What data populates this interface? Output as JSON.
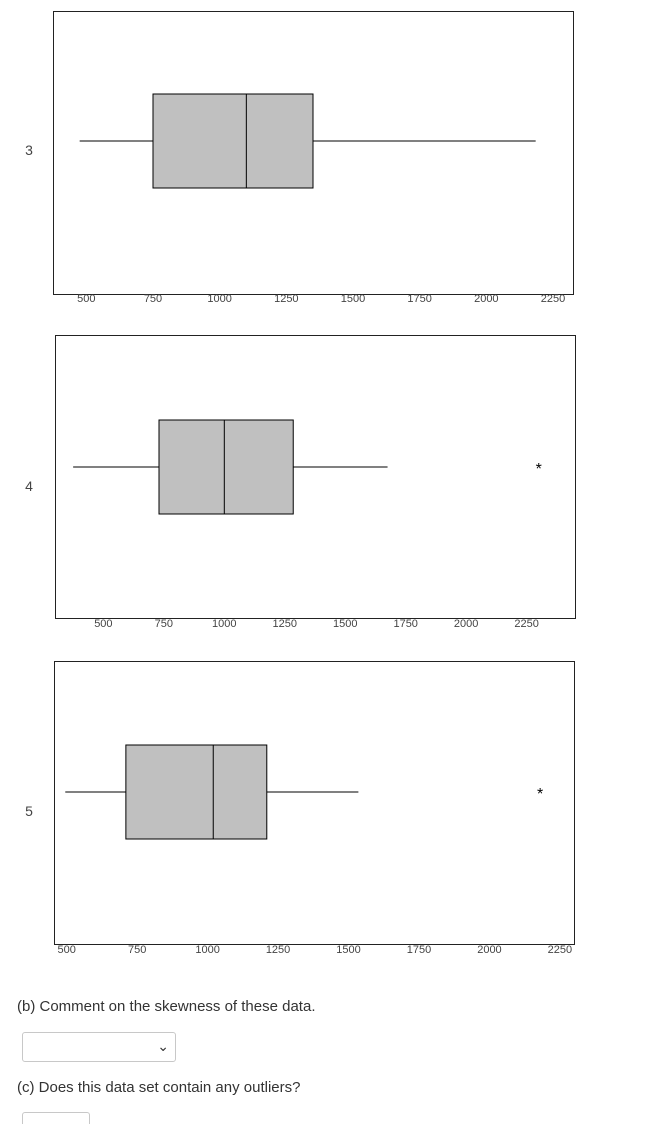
{
  "chart_data": [
    {
      "type": "boxplot",
      "label": "3",
      "ticks": [
        500,
        750,
        1000,
        1250,
        1500,
        1750,
        2000,
        2250
      ],
      "xlim": [
        375,
        2325
      ],
      "whisker_low": 475,
      "q1": 750,
      "median": 1100,
      "q3": 1350,
      "whisker_high": 2185,
      "outliers": []
    },
    {
      "type": "boxplot",
      "label": "4",
      "ticks": [
        500,
        750,
        1000,
        1250,
        1500,
        1750,
        2000,
        2250
      ],
      "xlim": [
        300,
        2450
      ],
      "whisker_low": 375,
      "q1": 730,
      "median": 1000,
      "q3": 1285,
      "whisker_high": 1675,
      "outliers": [
        2300
      ]
    },
    {
      "type": "boxplot",
      "label": "5",
      "ticks": [
        500,
        750,
        1000,
        1250,
        1500,
        1750,
        2000,
        2250
      ],
      "xlim": [
        455,
        2300
      ],
      "whisker_low": 495,
      "q1": 710,
      "median": 1020,
      "q3": 1210,
      "whisker_high": 1535,
      "outliers": [
        2180
      ]
    }
  ],
  "questions": {
    "b": "(b) Comment on the skewness of these data.",
    "c": "(c) Does this data set contain any outliers?"
  },
  "dropdown": {
    "selected": "",
    "chevron": "⌄"
  },
  "outlier_symbol": "*",
  "colors": {
    "box_fill": "#c0c0c0",
    "stroke": "#000000",
    "label": "#444444"
  }
}
